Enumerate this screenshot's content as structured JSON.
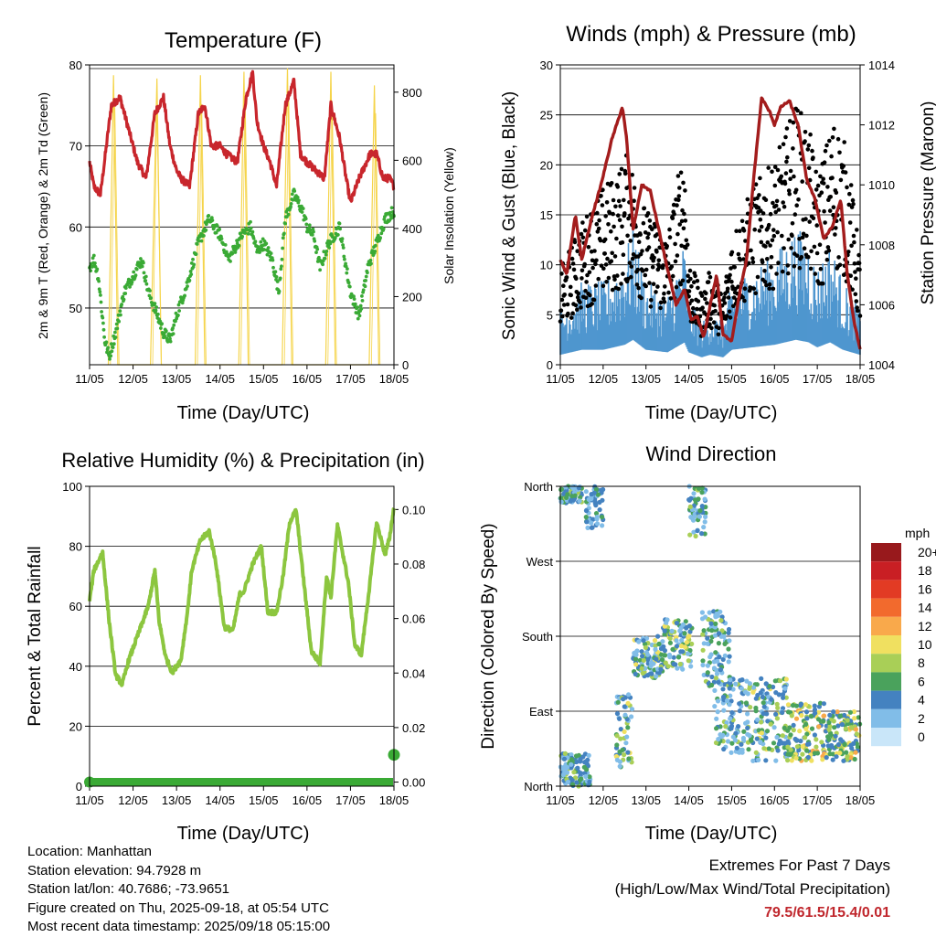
{
  "panels": {
    "temperature": {
      "title": "Temperature (F)",
      "ylabel_left": "2m & 9m T (Red, Orange) & 2m Td (Green)",
      "ylabel_right": "Solar Insolation (Yellow)",
      "xlabel": "Time (Day/UTC)"
    },
    "winds": {
      "title": "Winds (mph) & Pressure (mb)",
      "ylabel_left": "Sonic Wind & Gust (Blue, Black)",
      "ylabel_right": "Station Pressure (Maroon)",
      "xlabel": "Time (Day/UTC)"
    },
    "humidity": {
      "title": "Relative Humidity (%) & Precipitation (in)",
      "ylabel_left": "Percent & Total Rainfall",
      "xlabel": "Time (Day/UTC)"
    },
    "direction": {
      "title": "Wind Direction",
      "ylabel_left": "Direction (Colored By Speed)",
      "xlabel": "Time (Day/UTC)",
      "legend_title": "mph"
    }
  },
  "info": {
    "location": "Location: Manhattan",
    "elevation": "Station elevation: 94.7928 m",
    "latlon": "Station lat/lon: 40.7686; -73.9651",
    "created": "Figure created on Thu, 2025-09-18, at 05:54 UTC",
    "recent": "Most recent data timestamp: 2025/09/18 05:15:00"
  },
  "extremes": {
    "line1": "Extremes For Past 7 Days",
    "line2": "(High/Low/Max Wind/Total Precipitation)",
    "values": "79.5/61.5/15.4/0.01"
  },
  "chart_data": [
    {
      "type": "line",
      "title": "Temperature (F)",
      "xlabel": "Time (Day/UTC)",
      "ylabel": "2m & 9m T (Red, Orange) & 2m Td (Green)",
      "y2label": "Solar Insolation (Yellow)",
      "x_ticks": [
        "11/05",
        "12/05",
        "13/05",
        "14/05",
        "15/05",
        "16/05",
        "17/05",
        "18/05"
      ],
      "x_range": [
        0,
        7
      ],
      "ylim": [
        43,
        80
      ],
      "y_ticks": [
        50,
        60,
        70,
        80
      ],
      "y2lim": [
        0,
        880
      ],
      "y2_ticks": [
        0,
        200,
        400,
        600,
        800
      ],
      "grid": "horizontal",
      "series": [
        {
          "name": "2m T",
          "color": "#c8262c",
          "x": [
            0,
            0.1,
            0.25,
            0.5,
            0.7,
            0.9,
            1.0,
            1.1,
            1.3,
            1.5,
            1.7,
            1.85,
            2.0,
            2.1,
            2.3,
            2.5,
            2.65,
            2.8,
            3.0,
            3.15,
            3.4,
            3.6,
            3.75,
            3.85,
            4.0,
            4.15,
            4.3,
            4.5,
            4.7,
            4.85,
            5.0,
            5.2,
            5.4,
            5.55,
            5.75,
            5.9,
            6.0,
            6.2,
            6.45,
            6.6,
            6.75,
            6.9,
            7.0
          ],
          "y": [
            68,
            65,
            64,
            75,
            76,
            72,
            70,
            68,
            66,
            74,
            76,
            70,
            67,
            66,
            65,
            74,
            75,
            70,
            70,
            69,
            68,
            76,
            79,
            73,
            70,
            68,
            65,
            75,
            78,
            69,
            68,
            67,
            66,
            75,
            71,
            66,
            63,
            66,
            69,
            69,
            66,
            66,
            65
          ]
        },
        {
          "name": "2m Td",
          "color": "#3aaa35",
          "x": [
            0,
            0.1,
            0.2,
            0.35,
            0.45,
            0.6,
            0.8,
            1.0,
            1.2,
            1.35,
            1.5,
            1.7,
            1.85,
            2.05,
            2.25,
            2.5,
            2.75,
            3.0,
            3.2,
            3.5,
            3.7,
            3.85,
            4.0,
            4.2,
            4.35,
            4.5,
            4.7,
            4.9,
            5.0,
            5.15,
            5.3,
            5.5,
            5.75,
            5.9,
            6.0,
            6.2,
            6.4,
            6.6,
            6.8,
            7.0
          ],
          "y": [
            55,
            56,
            54,
            46,
            44,
            47,
            52,
            54,
            56,
            52,
            50,
            47,
            46,
            50,
            53,
            58,
            61,
            59,
            56,
            59,
            60,
            57,
            58,
            56,
            52,
            61,
            64,
            62,
            60,
            59,
            55,
            58,
            60,
            55,
            52,
            49,
            55,
            58,
            61,
            62
          ]
        },
        {
          "name": "Solar Insolation",
          "color": "#f5d44a",
          "axis": "right",
          "x": [
            0.43,
            0.55,
            0.65,
            1.4,
            1.55,
            1.65,
            2.43,
            2.55,
            2.65,
            3.43,
            3.55,
            3.65,
            4.43,
            4.55,
            4.65,
            5.43,
            5.55,
            5.65,
            6.43,
            6.55,
            6.65
          ],
          "y": [
            0,
            850,
            0,
            0,
            840,
            0,
            0,
            850,
            0,
            0,
            860,
            0,
            0,
            870,
            0,
            0,
            860,
            0,
            0,
            820,
            0
          ]
        }
      ]
    },
    {
      "type": "line",
      "title": "Winds (mph) & Pressure (mb)",
      "xlabel": "Time (Day/UTC)",
      "ylabel": "Sonic Wind & Gust (Blue, Black)",
      "y2label": "Station Pressure (Maroon)",
      "x_ticks": [
        "11/05",
        "12/05",
        "13/05",
        "14/05",
        "15/05",
        "16/05",
        "17/05",
        "18/05"
      ],
      "x_range": [
        0,
        7
      ],
      "ylim": [
        0,
        30
      ],
      "y_ticks": [
        0,
        5,
        10,
        15,
        20,
        25,
        30
      ],
      "y2lim": [
        1004,
        1014
      ],
      "y2_ticks": [
        1004,
        1006,
        1008,
        1010,
        1012,
        1014
      ],
      "grid": "horizontal",
      "series": [
        {
          "name": "Sonic Wind",
          "color": "#4f96cf",
          "x": [
            0,
            0.5,
            1.0,
            1.5,
            1.7,
            2.0,
            2.5,
            2.9,
            3.0,
            3.3,
            3.5,
            3.8,
            4.0,
            4.5,
            5.0,
            5.5,
            5.8,
            6.0,
            6.3,
            6.6,
            7.0
          ],
          "y": [
            4,
            6,
            6,
            8,
            10,
            6,
            5,
            9,
            5,
            3,
            4,
            3,
            6,
            7,
            8,
            10,
            9,
            7,
            9,
            6,
            4
          ]
        },
        {
          "name": "Gust",
          "color": "#000000",
          "x": [
            0,
            0.5,
            1.0,
            1.3,
            1.6,
            2.0,
            2.5,
            2.9,
            3.0,
            3.3,
            3.5,
            3.8,
            4.0,
            4.5,
            5.0,
            5.5,
            5.8,
            6.0,
            6.4,
            6.7,
            7.0
          ],
          "y": [
            8,
            12,
            15,
            16,
            18,
            13,
            11,
            19,
            9,
            6,
            8,
            6,
            11,
            15,
            17,
            22,
            20,
            16,
            21,
            18,
            9
          ]
        },
        {
          "name": "Station Pressure",
          "color": "#a31c1c",
          "axis": "right",
          "x": [
            0,
            0.15,
            0.35,
            0.5,
            0.75,
            0.95,
            1.2,
            1.45,
            1.55,
            1.7,
            1.9,
            2.1,
            2.3,
            2.5,
            2.7,
            2.9,
            3.05,
            3.2,
            3.35,
            3.5,
            3.65,
            3.8,
            4.0,
            4.2,
            4.35,
            4.5,
            4.7,
            4.9,
            5.0,
            5.15,
            5.35,
            5.55,
            5.75,
            5.95,
            6.15,
            6.35,
            6.55,
            6.7,
            6.85,
            7.0
          ],
          "y": [
            1007.5,
            1007,
            1009,
            1007.5,
            1009,
            1010,
            1011.5,
            1012.6,
            1011.5,
            1008.5,
            1010,
            1009.8,
            1008.5,
            1007.2,
            1006,
            1006.5,
            1005.5,
            1005.6,
            1004.9,
            1006,
            1007,
            1005,
            1004.8,
            1006.5,
            1007.5,
            1010,
            1012.9,
            1012.4,
            1012,
            1012.6,
            1012.8,
            1012,
            1010.2,
            1009.5,
            1008.2,
            1008.6,
            1009.5,
            1007,
            1005.5,
            1004.5
          ]
        }
      ]
    },
    {
      "type": "line",
      "title": "Relative Humidity (%) & Precipitation (in)",
      "xlabel": "Time (Day/UTC)",
      "ylabel": "Percent & Total Rainfall",
      "x_ticks": [
        "11/05",
        "12/05",
        "13/05",
        "14/05",
        "15/05",
        "16/05",
        "17/05",
        "18/05"
      ],
      "x_range": [
        0,
        7
      ],
      "ylim": [
        0,
        100
      ],
      "y_ticks": [
        0,
        20,
        40,
        60,
        80,
        100
      ],
      "y2lim": [
        -0.0015,
        0.1085
      ],
      "y2_ticks": [
        0.0,
        0.02,
        0.04,
        0.06,
        0.08,
        0.1
      ],
      "grid": "horizontal",
      "series": [
        {
          "name": "RH",
          "color": "#8cc63f",
          "x": [
            0,
            0.1,
            0.3,
            0.45,
            0.6,
            0.75,
            0.9,
            1.1,
            1.25,
            1.35,
            1.5,
            1.6,
            1.75,
            1.9,
            2.1,
            2.25,
            2.35,
            2.55,
            2.75,
            2.9,
            3.1,
            3.3,
            3.45,
            3.55,
            3.75,
            3.95,
            4.1,
            4.3,
            4.45,
            4.6,
            4.75,
            4.95,
            5.1,
            5.3,
            5.45,
            5.55,
            5.7,
            5.95,
            6.1,
            6.25,
            6.45,
            6.6,
            6.8,
            6.9,
            7.0
          ],
          "y": [
            62,
            72,
            78,
            55,
            37,
            34,
            42,
            50,
            56,
            60,
            72,
            55,
            43,
            38,
            42,
            58,
            72,
            82,
            85,
            75,
            53,
            52,
            64,
            65,
            74,
            80,
            58,
            58,
            70,
            88,
            92,
            65,
            45,
            41,
            70,
            63,
            87,
            68,
            47,
            44,
            68,
            88,
            77,
            83,
            93
          ]
        },
        {
          "name": "Total Precipitation",
          "color": "#3aaa35",
          "axis": "right",
          "x": [
            0,
            6.98,
            7.0
          ],
          "y": [
            0.0,
            0.0,
            0.01
          ]
        }
      ]
    },
    {
      "type": "scatter",
      "title": "Wind Direction",
      "xlabel": "Time (Day/UTC)",
      "ylabel": "Direction (Colored By Speed)",
      "x_ticks": [
        "11/05",
        "12/05",
        "13/05",
        "14/05",
        "15/05",
        "16/05",
        "17/05",
        "18/05"
      ],
      "x_range": [
        0,
        7
      ],
      "y_ticks": [
        "North",
        "East",
        "South",
        "West",
        "North"
      ],
      "ylim": [
        0,
        360
      ],
      "grid": "horizontal",
      "legend": {
        "title": "mph",
        "placement": "right",
        "labels": [
          "20+",
          "18",
          "16",
          "14",
          "12",
          "10",
          "8",
          "6",
          "4",
          "2",
          "0"
        ],
        "colors": [
          "#98191c",
          "#c91f24",
          "#e23b24",
          "#f26a2d",
          "#f9a94b",
          "#f0e060",
          "#a9cf57",
          "#4aa25c",
          "#4482c0",
          "#81bde8",
          "#c9e6f9"
        ]
      },
      "clusters": [
        {
          "x": [
            0,
            0.5
          ],
          "dir": [
            340,
            360
          ],
          "speed": [
            2,
            8
          ]
        },
        {
          "x": [
            0,
            0.7
          ],
          "dir": [
            0,
            40
          ],
          "speed": [
            2,
            8
          ]
        },
        {
          "x": [
            0.6,
            1.0
          ],
          "dir": [
            310,
            360
          ],
          "speed": [
            2,
            6
          ]
        },
        {
          "x": [
            1.3,
            1.7
          ],
          "dir": [
            20,
            110
          ],
          "speed": [
            2,
            10
          ]
        },
        {
          "x": [
            1.7,
            2.4
          ],
          "dir": [
            130,
            180
          ],
          "speed": [
            2,
            10
          ]
        },
        {
          "x": [
            2.4,
            3.1
          ],
          "dir": [
            140,
            200
          ],
          "speed": [
            2,
            10
          ]
        },
        {
          "x": [
            3.0,
            3.4
          ],
          "dir": [
            300,
            360
          ],
          "speed": [
            2,
            8
          ]
        },
        {
          "x": [
            3.3,
            4.0
          ],
          "dir": [
            120,
            210
          ],
          "speed": [
            2,
            8
          ]
        },
        {
          "x": [
            3.6,
            4.4
          ],
          "dir": [
            40,
            130
          ],
          "speed": [
            2,
            8
          ]
        },
        {
          "x": [
            4.4,
            5.3
          ],
          "dir": [
            30,
            130
          ],
          "speed": [
            2,
            10
          ]
        },
        {
          "x": [
            5.3,
            6.2
          ],
          "dir": [
            30,
            100
          ],
          "speed": [
            4,
            12
          ]
        },
        {
          "x": [
            6.2,
            7.0
          ],
          "dir": [
            30,
            90
          ],
          "speed": [
            4,
            12
          ]
        }
      ]
    }
  ]
}
